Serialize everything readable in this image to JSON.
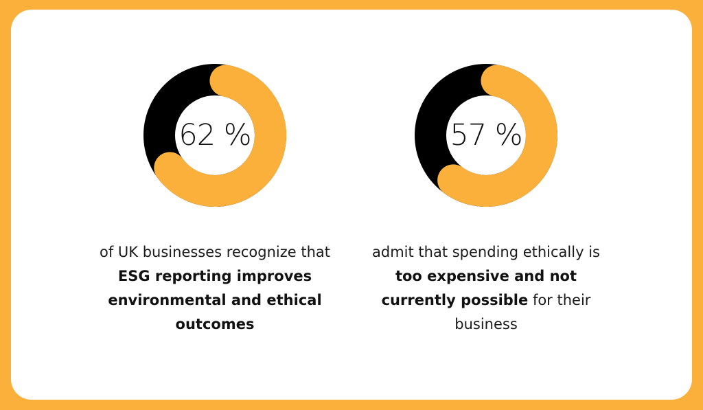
{
  "colors": {
    "accent": "#FBB03B",
    "track": "#000000",
    "card": "#FFFFFF"
  },
  "chart_data": [
    {
      "type": "pie",
      "variant": "donut",
      "value": 62,
      "center_label": "62 %",
      "caption": {
        "pre": "of UK businesses recognize that",
        "bold": "ESG reporting improves environmental and ethical outcomes",
        "post": ""
      }
    },
    {
      "type": "pie",
      "variant": "donut",
      "value": 57,
      "center_label": "57 %",
      "caption": {
        "pre": "admit that spending ethically is",
        "bold": "too expensive and not currently possible",
        "post": "for their business"
      }
    }
  ]
}
